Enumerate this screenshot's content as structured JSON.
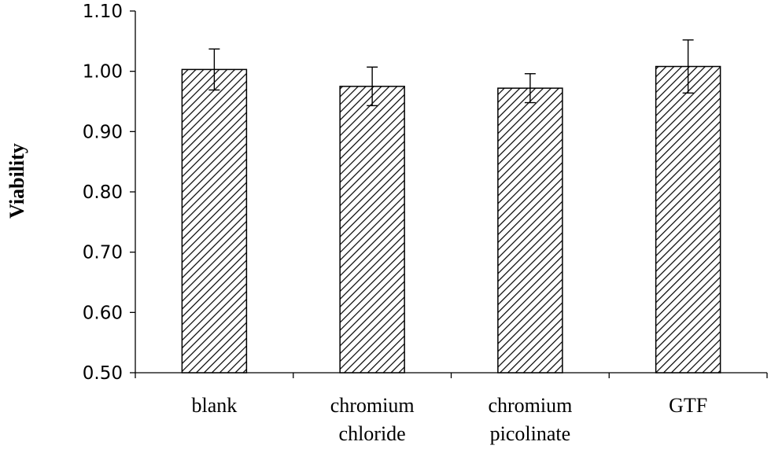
{
  "chart_data": {
    "type": "bar",
    "title": "",
    "xlabel": "",
    "ylabel": "Viability",
    "ylim": [
      0.5,
      1.1
    ],
    "yticks": [
      "0.50",
      "0.60",
      "0.70",
      "0.80",
      "0.90",
      "1.00",
      "1.10"
    ],
    "categories": [
      [
        "blank"
      ],
      [
        "chromium",
        "chloride"
      ],
      [
        "chromium",
        "picolinate"
      ],
      [
        "GTF"
      ]
    ],
    "values": [
      1.003,
      0.975,
      0.972,
      1.008
    ],
    "errors": [
      0.034,
      0.032,
      0.024,
      0.044
    ],
    "bar_fill": "hatched",
    "bar_color": "#000000",
    "grid": false
  }
}
